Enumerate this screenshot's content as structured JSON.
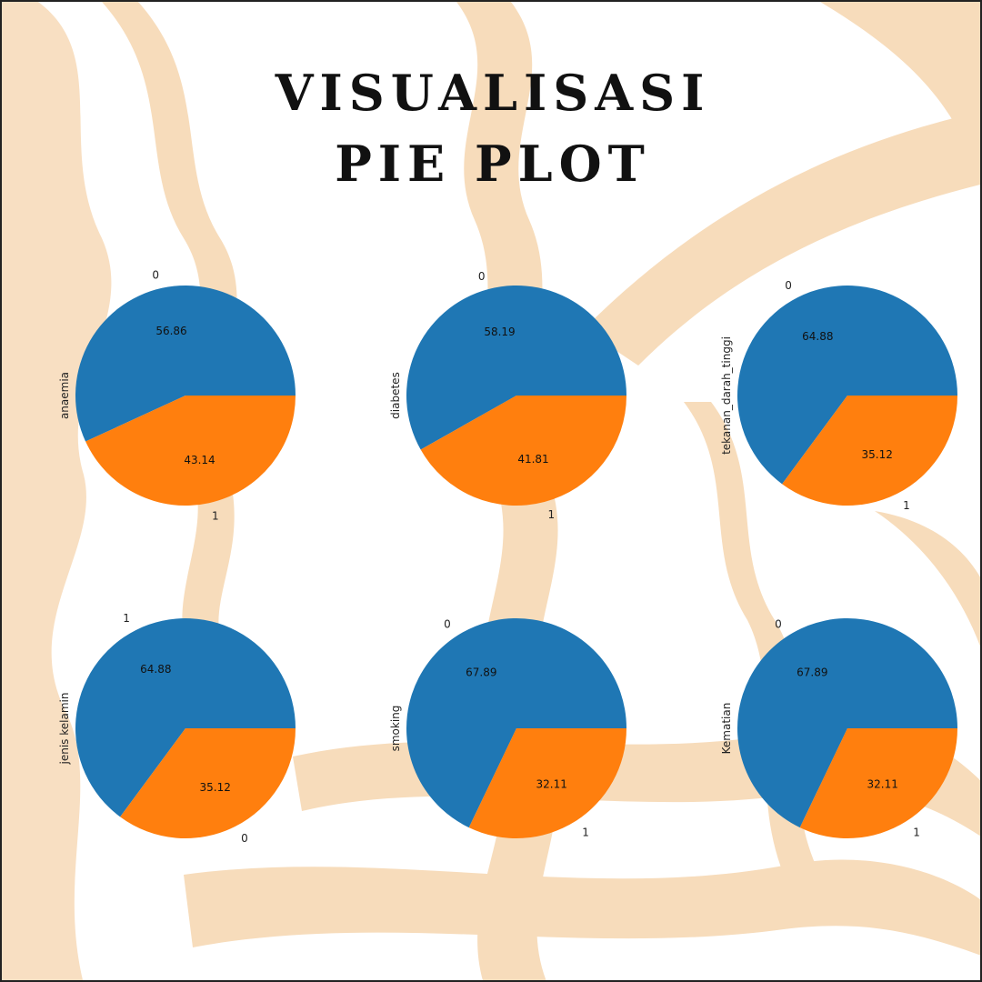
{
  "title": {
    "line1": "VISUALISASI",
    "line2": "PIE PLOT"
  },
  "colors": {
    "background": "#ffffff",
    "decor": "#f7dcbb",
    "slice_first": "#1f77b4",
    "slice_second": "#ff7f0e",
    "text": "#111111"
  },
  "chart_data": [
    {
      "type": "pie",
      "ylabel": "anaemia",
      "labels": [
        "0",
        "1"
      ],
      "values": [
        56.86,
        43.14
      ]
    },
    {
      "type": "pie",
      "ylabel": "diabetes",
      "labels": [
        "0",
        "1"
      ],
      "values": [
        58.19,
        41.81
      ]
    },
    {
      "type": "pie",
      "ylabel": "tekanan_darah_tinggi",
      "labels": [
        "0",
        "1"
      ],
      "values": [
        64.88,
        35.12
      ]
    },
    {
      "type": "pie",
      "ylabel": "jenis kelamin",
      "labels": [
        "1",
        "0"
      ],
      "values": [
        64.88,
        35.12
      ]
    },
    {
      "type": "pie",
      "ylabel": "smoking",
      "labels": [
        "0",
        "1"
      ],
      "values": [
        67.89,
        32.11
      ]
    },
    {
      "type": "pie",
      "ylabel": "Kematian",
      "labels": [
        "0",
        "1"
      ],
      "values": [
        67.89,
        32.11
      ]
    }
  ]
}
